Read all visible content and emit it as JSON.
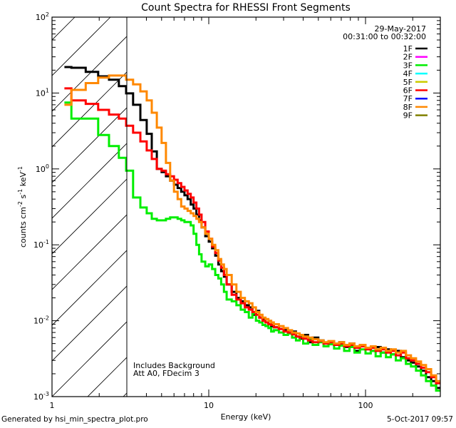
{
  "chart_data": {
    "type": "line",
    "title": "Count Spectra for RHESSI Front Segments",
    "xlabel": "Energy (keV)",
    "ylabel": "counts cm^-2 s^-1 keV^-1",
    "xscale": "log",
    "yscale": "log",
    "xlim": [
      1,
      300
    ],
    "ylim": [
      0.001,
      100
    ],
    "x_tick_labels": [
      "1",
      "10",
      "100"
    ],
    "y_tick_labels": [
      {
        "base": "10",
        "exp": "2"
      },
      {
        "base": "10",
        "exp": "1"
      },
      {
        "base": "10",
        "exp": "0"
      },
      {
        "base": "10",
        "exp": "-1"
      },
      {
        "base": "10",
        "exp": "-2"
      },
      {
        "base": "10",
        "exp": "-3"
      }
    ],
    "hatched_region_keV": [
      1,
      3
    ],
    "legend_position": "top-right",
    "date": "29-May-2017",
    "time_range": "00:31:00 to 00:32:00",
    "annotations": [
      "Includes Background",
      "Att A0, FDecim 3"
    ],
    "energy_edges": [
      1.2,
      1.33,
      1.64,
      1.97,
      2.31,
      2.67,
      2.97,
      3.29,
      3.66,
      4.02,
      4.33,
      4.66,
      5.0,
      5.33,
      5.67,
      6.0,
      6.33,
      6.67,
      7.0,
      7.33,
      7.67,
      8.0,
      8.33,
      8.67,
      9.0,
      9.5,
      10.0,
      10.5,
      11.0,
      11.5,
      12.0,
      12.5,
      13.0,
      14.0,
      15.0,
      16.0,
      17.0,
      18.0,
      19.0,
      20.0,
      21.0,
      22.0,
      23.0,
      24.0,
      25.0,
      26.0,
      28.0,
      30.0,
      32.0,
      34.0,
      36.0,
      38.0,
      40.0,
      43.0,
      46.0,
      50.0,
      54.0,
      58.0,
      63.0,
      68.0,
      73.0,
      79.0,
      85.0,
      92.0,
      100.0,
      108.0,
      116.0,
      125.0,
      135.0,
      145.0,
      156.0,
      168.0,
      181.0,
      195.0,
      210.0,
      226.0,
      243.0,
      262.0,
      282.0,
      300.0
    ],
    "series": [
      {
        "name": "1F",
        "color": "#000000",
        "values": [
          22,
          21.5,
          19,
          16.6,
          15,
          12.3,
          9.9,
          7.0,
          4.4,
          2.9,
          1.7,
          1.0,
          0.91,
          0.8,
          0.7,
          0.62,
          0.56,
          0.5,
          0.45,
          0.4,
          0.34,
          0.3,
          0.25,
          0.21,
          0.17,
          0.13,
          0.11,
          0.09,
          0.072,
          0.055,
          0.045,
          0.038,
          0.03,
          0.024,
          0.02,
          0.018,
          0.016,
          0.015,
          0.012,
          0.0135,
          0.011,
          0.0105,
          0.0095,
          0.009,
          0.0085,
          0.0082,
          0.0078,
          0.0075,
          0.0068,
          0.0072,
          0.0062,
          0.0058,
          0.0065,
          0.0052,
          0.006,
          0.0055,
          0.005,
          0.0053,
          0.0048,
          0.0052,
          0.0045,
          0.005,
          0.004,
          0.0048,
          0.0043,
          0.004,
          0.0045,
          0.0038,
          0.0042,
          0.0036,
          0.004,
          0.0033,
          0.003,
          0.0028,
          0.0025,
          0.0022,
          0.0018,
          0.0016,
          0.0013
        ]
      },
      {
        "name": "2F",
        "color": "#ff00ff",
        "values": []
      },
      {
        "name": "3F",
        "color": "#00ee00",
        "values": [
          7.5,
          4.6,
          4.6,
          2.8,
          2.0,
          1.4,
          0.95,
          0.42,
          0.31,
          0.26,
          0.22,
          0.21,
          0.21,
          0.22,
          0.23,
          0.23,
          0.22,
          0.21,
          0.2,
          0.2,
          0.18,
          0.14,
          0.1,
          0.075,
          0.06,
          0.052,
          0.055,
          0.048,
          0.04,
          0.036,
          0.03,
          0.024,
          0.019,
          0.018,
          0.016,
          0.014,
          0.013,
          0.011,
          0.0125,
          0.01,
          0.0095,
          0.0088,
          0.0085,
          0.008,
          0.0072,
          0.0075,
          0.007,
          0.0065,
          0.0068,
          0.006,
          0.0055,
          0.0062,
          0.005,
          0.0058,
          0.0048,
          0.0052,
          0.0046,
          0.0049,
          0.0043,
          0.0047,
          0.004,
          0.0045,
          0.0038,
          0.0042,
          0.0037,
          0.004,
          0.0034,
          0.0038,
          0.0033,
          0.0036,
          0.003,
          0.0032,
          0.0027,
          0.0025,
          0.0022,
          0.0019,
          0.0016,
          0.0014,
          0.0012
        ]
      },
      {
        "name": "4F",
        "color": "#00ffff",
        "values": []
      },
      {
        "name": "5F",
        "color": "#cccc00",
        "values": []
      },
      {
        "name": "6F",
        "color": "#ff0000",
        "values": [
          11.5,
          8.0,
          7.2,
          6.0,
          5.2,
          4.6,
          3.7,
          3.0,
          2.3,
          1.75,
          1.35,
          1.0,
          0.95,
          0.85,
          0.8,
          0.72,
          0.65,
          0.58,
          0.52,
          0.47,
          0.42,
          0.36,
          0.3,
          0.25,
          0.2,
          0.15,
          0.12,
          0.095,
          0.078,
          0.062,
          0.05,
          0.04,
          0.03,
          0.022,
          0.019,
          0.017,
          0.015,
          0.014,
          0.013,
          0.012,
          0.011,
          0.01,
          0.0095,
          0.009,
          0.0088,
          0.0082,
          0.0078,
          0.0072,
          0.007,
          0.0066,
          0.0062,
          0.006,
          0.0058,
          0.0055,
          0.0052,
          0.0054,
          0.005,
          0.0052,
          0.0048,
          0.005,
          0.0046,
          0.0048,
          0.0044,
          0.0046,
          0.0042,
          0.0044,
          0.004,
          0.0042,
          0.0038,
          0.004,
          0.0035,
          0.0038,
          0.0032,
          0.003,
          0.0027,
          0.0024,
          0.0021,
          0.0018,
          0.0015
        ]
      },
      {
        "name": "7F",
        "color": "#0000ff",
        "values": []
      },
      {
        "name": "8F",
        "color": "#ff8800",
        "values": [
          7.0,
          11.0,
          13.5,
          16.0,
          17.0,
          17.0,
          15.0,
          13.0,
          10.5,
          8.0,
          5.5,
          3.5,
          2.2,
          1.2,
          0.7,
          0.5,
          0.4,
          0.32,
          0.3,
          0.28,
          0.26,
          0.24,
          0.22,
          0.2,
          0.17,
          0.14,
          0.12,
          0.1,
          0.085,
          0.065,
          0.055,
          0.048,
          0.04,
          0.03,
          0.024,
          0.02,
          0.018,
          0.017,
          0.015,
          0.013,
          0.012,
          0.011,
          0.0105,
          0.01,
          0.0095,
          0.009,
          0.0085,
          0.008,
          0.0075,
          0.007,
          0.0068,
          0.0065,
          0.0062,
          0.006,
          0.0057,
          0.0055,
          0.0052,
          0.0054,
          0.005,
          0.0052,
          0.0048,
          0.005,
          0.0046,
          0.0048,
          0.0044,
          0.0046,
          0.0042,
          0.0044,
          0.004,
          0.0042,
          0.0038,
          0.004,
          0.0035,
          0.0032,
          0.0029,
          0.0026,
          0.0023,
          0.0019,
          0.0016
        ]
      },
      {
        "name": "9F",
        "color": "#808000",
        "values": []
      }
    ]
  },
  "footer": {
    "generated_by": "Generated by hsi_min_spectra_plot.pro",
    "timestamp": "5-Oct-2017 09:57"
  }
}
